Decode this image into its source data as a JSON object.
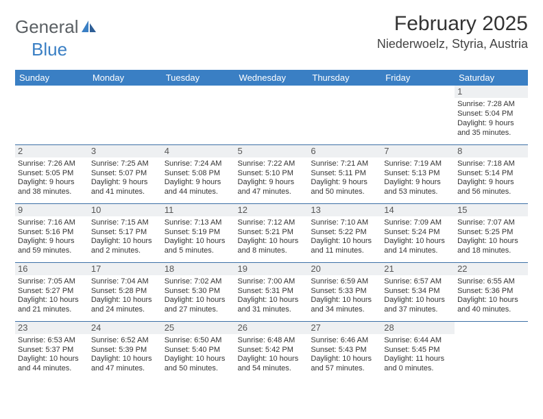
{
  "logo": {
    "text1": "General",
    "text2": "Blue"
  },
  "title": "February 2025",
  "location": "Niederwoelz, Styria, Austria",
  "colors": {
    "header_bg": "#3a7fc4",
    "header_text": "#ffffff",
    "row_border": "#3a6ea5",
    "daynum_bg": "#eef0f2",
    "body_text": "#333333",
    "logo_gray": "#5a5f63",
    "logo_blue": "#3a7fc4"
  },
  "typography": {
    "title_fontsize": 30,
    "location_fontsize": 18,
    "header_fontsize": 13,
    "daynum_fontsize": 13,
    "cell_fontsize": 11,
    "logo_fontsize": 26
  },
  "weekdays": [
    "Sunday",
    "Monday",
    "Tuesday",
    "Wednesday",
    "Thursday",
    "Friday",
    "Saturday"
  ],
  "weeks": [
    [
      {
        "empty": true
      },
      {
        "empty": true
      },
      {
        "empty": true
      },
      {
        "empty": true
      },
      {
        "empty": true
      },
      {
        "empty": true
      },
      {
        "day": "1",
        "sunrise": "Sunrise: 7:28 AM",
        "sunset": "Sunset: 5:04 PM",
        "daylight": "Daylight: 9 hours and 35 minutes."
      }
    ],
    [
      {
        "day": "2",
        "sunrise": "Sunrise: 7:26 AM",
        "sunset": "Sunset: 5:05 PM",
        "daylight": "Daylight: 9 hours and 38 minutes."
      },
      {
        "day": "3",
        "sunrise": "Sunrise: 7:25 AM",
        "sunset": "Sunset: 5:07 PM",
        "daylight": "Daylight: 9 hours and 41 minutes."
      },
      {
        "day": "4",
        "sunrise": "Sunrise: 7:24 AM",
        "sunset": "Sunset: 5:08 PM",
        "daylight": "Daylight: 9 hours and 44 minutes."
      },
      {
        "day": "5",
        "sunrise": "Sunrise: 7:22 AM",
        "sunset": "Sunset: 5:10 PM",
        "daylight": "Daylight: 9 hours and 47 minutes."
      },
      {
        "day": "6",
        "sunrise": "Sunrise: 7:21 AM",
        "sunset": "Sunset: 5:11 PM",
        "daylight": "Daylight: 9 hours and 50 minutes."
      },
      {
        "day": "7",
        "sunrise": "Sunrise: 7:19 AM",
        "sunset": "Sunset: 5:13 PM",
        "daylight": "Daylight: 9 hours and 53 minutes."
      },
      {
        "day": "8",
        "sunrise": "Sunrise: 7:18 AM",
        "sunset": "Sunset: 5:14 PM",
        "daylight": "Daylight: 9 hours and 56 minutes."
      }
    ],
    [
      {
        "day": "9",
        "sunrise": "Sunrise: 7:16 AM",
        "sunset": "Sunset: 5:16 PM",
        "daylight": "Daylight: 9 hours and 59 minutes."
      },
      {
        "day": "10",
        "sunrise": "Sunrise: 7:15 AM",
        "sunset": "Sunset: 5:17 PM",
        "daylight": "Daylight: 10 hours and 2 minutes."
      },
      {
        "day": "11",
        "sunrise": "Sunrise: 7:13 AM",
        "sunset": "Sunset: 5:19 PM",
        "daylight": "Daylight: 10 hours and 5 minutes."
      },
      {
        "day": "12",
        "sunrise": "Sunrise: 7:12 AM",
        "sunset": "Sunset: 5:21 PM",
        "daylight": "Daylight: 10 hours and 8 minutes."
      },
      {
        "day": "13",
        "sunrise": "Sunrise: 7:10 AM",
        "sunset": "Sunset: 5:22 PM",
        "daylight": "Daylight: 10 hours and 11 minutes."
      },
      {
        "day": "14",
        "sunrise": "Sunrise: 7:09 AM",
        "sunset": "Sunset: 5:24 PM",
        "daylight": "Daylight: 10 hours and 14 minutes."
      },
      {
        "day": "15",
        "sunrise": "Sunrise: 7:07 AM",
        "sunset": "Sunset: 5:25 PM",
        "daylight": "Daylight: 10 hours and 18 minutes."
      }
    ],
    [
      {
        "day": "16",
        "sunrise": "Sunrise: 7:05 AM",
        "sunset": "Sunset: 5:27 PM",
        "daylight": "Daylight: 10 hours and 21 minutes."
      },
      {
        "day": "17",
        "sunrise": "Sunrise: 7:04 AM",
        "sunset": "Sunset: 5:28 PM",
        "daylight": "Daylight: 10 hours and 24 minutes."
      },
      {
        "day": "18",
        "sunrise": "Sunrise: 7:02 AM",
        "sunset": "Sunset: 5:30 PM",
        "daylight": "Daylight: 10 hours and 27 minutes."
      },
      {
        "day": "19",
        "sunrise": "Sunrise: 7:00 AM",
        "sunset": "Sunset: 5:31 PM",
        "daylight": "Daylight: 10 hours and 31 minutes."
      },
      {
        "day": "20",
        "sunrise": "Sunrise: 6:59 AM",
        "sunset": "Sunset: 5:33 PM",
        "daylight": "Daylight: 10 hours and 34 minutes."
      },
      {
        "day": "21",
        "sunrise": "Sunrise: 6:57 AM",
        "sunset": "Sunset: 5:34 PM",
        "daylight": "Daylight: 10 hours and 37 minutes."
      },
      {
        "day": "22",
        "sunrise": "Sunrise: 6:55 AM",
        "sunset": "Sunset: 5:36 PM",
        "daylight": "Daylight: 10 hours and 40 minutes."
      }
    ],
    [
      {
        "day": "23",
        "sunrise": "Sunrise: 6:53 AM",
        "sunset": "Sunset: 5:37 PM",
        "daylight": "Daylight: 10 hours and 44 minutes."
      },
      {
        "day": "24",
        "sunrise": "Sunrise: 6:52 AM",
        "sunset": "Sunset: 5:39 PM",
        "daylight": "Daylight: 10 hours and 47 minutes."
      },
      {
        "day": "25",
        "sunrise": "Sunrise: 6:50 AM",
        "sunset": "Sunset: 5:40 PM",
        "daylight": "Daylight: 10 hours and 50 minutes."
      },
      {
        "day": "26",
        "sunrise": "Sunrise: 6:48 AM",
        "sunset": "Sunset: 5:42 PM",
        "daylight": "Daylight: 10 hours and 54 minutes."
      },
      {
        "day": "27",
        "sunrise": "Sunrise: 6:46 AM",
        "sunset": "Sunset: 5:43 PM",
        "daylight": "Daylight: 10 hours and 57 minutes."
      },
      {
        "day": "28",
        "sunrise": "Sunrise: 6:44 AM",
        "sunset": "Sunset: 5:45 PM",
        "daylight": "Daylight: 11 hours and 0 minutes."
      },
      {
        "empty": true
      }
    ]
  ]
}
